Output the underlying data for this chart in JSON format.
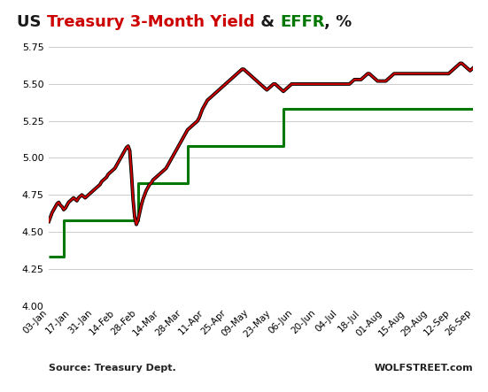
{
  "title_parts": [
    {
      "text": "US ",
      "color": "#1a1a1a"
    },
    {
      "text": "Treasury 3-Month Yield",
      "color": "#cc0000"
    },
    {
      "text": " & ",
      "color": "#1a1a1a"
    },
    {
      "text": "EFFR",
      "color": "#007700"
    },
    {
      "text": ", %",
      "color": "#1a1a1a"
    }
  ],
  "ylim": [
    4.0,
    5.75
  ],
  "yticks": [
    4.0,
    4.25,
    4.5,
    4.75,
    5.0,
    5.25,
    5.5,
    5.75
  ],
  "source_text": "Source: Treasury Dept.",
  "watermark": "WOLFSTREET.com",
  "bg_color": "#ffffff",
  "grid_color": "#cccccc",
  "effr_color": "#007700",
  "yield_color": "#cc0000",
  "yield_outline_color": "#000000",
  "xtick_labels": [
    "03-Jan",
    "17-Jan",
    "31-Jan",
    "14-Feb",
    "28-Feb",
    "14-Mar",
    "28-Mar",
    "11-Apr",
    "25-Apr",
    "09-May",
    "23-May",
    "06-Jun",
    "20-Jun",
    "04-Jul",
    "18-Jul",
    "01-Aug",
    "15-Aug",
    "29-Aug",
    "12-Sep",
    "26-Sep"
  ],
  "effr_x": [
    0,
    9,
    9,
    54,
    54,
    84,
    84,
    142,
    142,
    266
  ],
  "effr_y": [
    4.33,
    4.33,
    4.58,
    4.58,
    4.83,
    4.83,
    5.08,
    5.08,
    5.33,
    5.33
  ],
  "treasury_3m": [
    4.57,
    4.6,
    4.63,
    4.65,
    4.67,
    4.69,
    4.7,
    4.68,
    4.67,
    4.65,
    4.66,
    4.68,
    4.7,
    4.71,
    4.72,
    4.73,
    4.72,
    4.71,
    4.73,
    4.74,
    4.75,
    4.74,
    4.73,
    4.74,
    4.75,
    4.76,
    4.77,
    4.78,
    4.79,
    4.8,
    4.81,
    4.82,
    4.84,
    4.85,
    4.86,
    4.87,
    4.89,
    4.9,
    4.91,
    4.92,
    4.93,
    4.95,
    4.97,
    4.99,
    5.01,
    5.03,
    5.05,
    5.07,
    5.08,
    5.05,
    4.9,
    4.72,
    4.6,
    4.55,
    4.58,
    4.63,
    4.68,
    4.72,
    4.75,
    4.78,
    4.8,
    4.82,
    4.83,
    4.85,
    4.86,
    4.87,
    4.88,
    4.89,
    4.9,
    4.91,
    4.92,
    4.93,
    4.95,
    4.97,
    4.99,
    5.01,
    5.03,
    5.05,
    5.07,
    5.09,
    5.11,
    5.13,
    5.15,
    5.17,
    5.19,
    5.2,
    5.21,
    5.22,
    5.23,
    5.24,
    5.25,
    5.27,
    5.3,
    5.33,
    5.35,
    5.37,
    5.39,
    5.4,
    5.41,
    5.42,
    5.43,
    5.44,
    5.45,
    5.46,
    5.47,
    5.48,
    5.49,
    5.5,
    5.51,
    5.52,
    5.53,
    5.54,
    5.55,
    5.56,
    5.57,
    5.58,
    5.59,
    5.6,
    5.6,
    5.59,
    5.58,
    5.57,
    5.56,
    5.55,
    5.54,
    5.53,
    5.52,
    5.51,
    5.5,
    5.49,
    5.48,
    5.47,
    5.46,
    5.47,
    5.48,
    5.49,
    5.5,
    5.5,
    5.49,
    5.48,
    5.47,
    5.46,
    5.45,
    5.46,
    5.47,
    5.48,
    5.49,
    5.5,
    5.5,
    5.5,
    5.5,
    5.5,
    5.5,
    5.5,
    5.5,
    5.5,
    5.5,
    5.5,
    5.5,
    5.5,
    5.5,
    5.5,
    5.5,
    5.5,
    5.5,
    5.5,
    5.5,
    5.5,
    5.5,
    5.5,
    5.5,
    5.5,
    5.5,
    5.5,
    5.5,
    5.5,
    5.5,
    5.5,
    5.5,
    5.5,
    5.5,
    5.5,
    5.5,
    5.51,
    5.52,
    5.53,
    5.53,
    5.53,
    5.53,
    5.53,
    5.54,
    5.55,
    5.56,
    5.57,
    5.57,
    5.56,
    5.55,
    5.54,
    5.53,
    5.52,
    5.52,
    5.52,
    5.52,
    5.52,
    5.52,
    5.53,
    5.54,
    5.55,
    5.56,
    5.57,
    5.57,
    5.57,
    5.57,
    5.57,
    5.57,
    5.57,
    5.57,
    5.57,
    5.57,
    5.57,
    5.57,
    5.57,
    5.57,
    5.57,
    5.57,
    5.57,
    5.57,
    5.57,
    5.57,
    5.57,
    5.57,
    5.57,
    5.57,
    5.57,
    5.57,
    5.57,
    5.57,
    5.57,
    5.57,
    5.57,
    5.57,
    5.57,
    5.57,
    5.58,
    5.59,
    5.6,
    5.61,
    5.62,
    5.63,
    5.64,
    5.64,
    5.63,
    5.62,
    5.61,
    5.6,
    5.59,
    5.6,
    5.61
  ]
}
